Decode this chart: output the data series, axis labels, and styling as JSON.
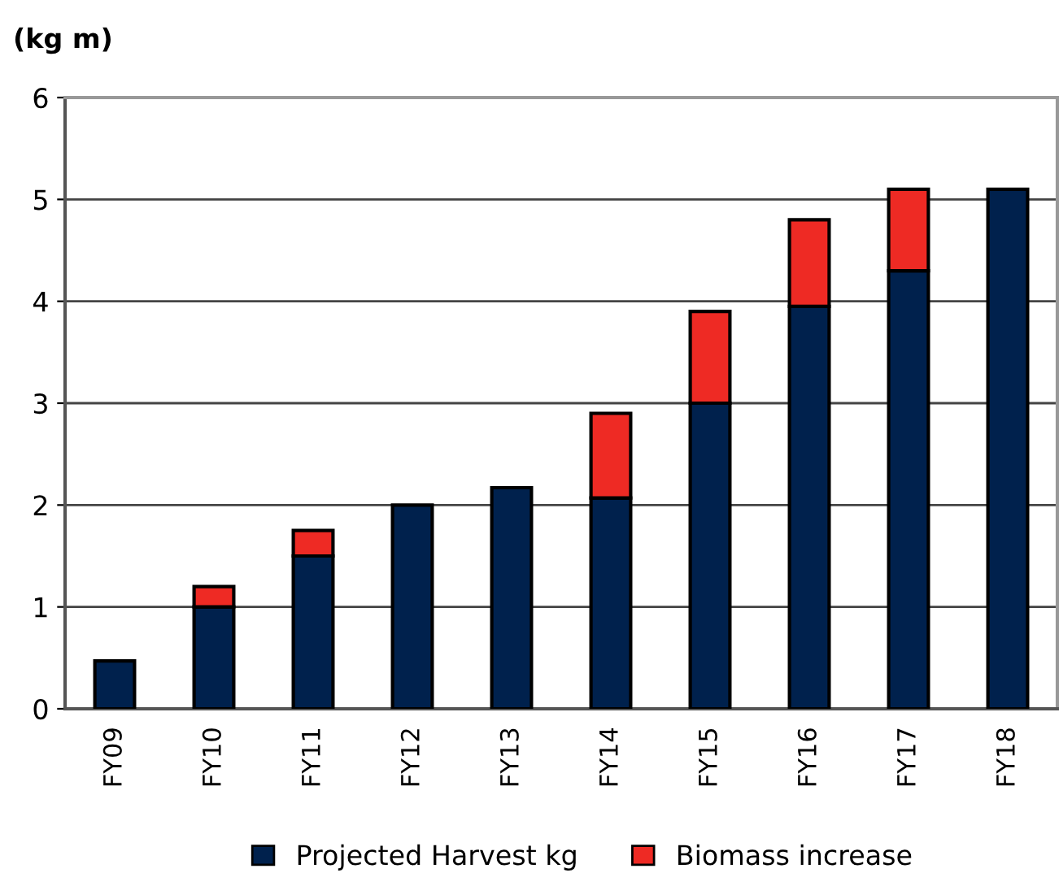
{
  "chart_data": {
    "type": "bar",
    "stacked": true,
    "ylabel": "(kg m)",
    "categories": [
      "FY09",
      "FY10",
      "FY11",
      "FY12",
      "FY13",
      "FY14",
      "FY15",
      "FY16",
      "FY17",
      "FY18"
    ],
    "series": [
      {
        "name": "Projected Harvest kg",
        "color": "#00214d",
        "values": [
          0.47,
          1.0,
          1.5,
          2.0,
          2.17,
          2.07,
          3.0,
          3.95,
          4.3,
          5.1
        ]
      },
      {
        "name": "Biomass increase",
        "color": "#ee2a24",
        "values": [
          null,
          0.2,
          0.25,
          null,
          null,
          0.83,
          0.9,
          0.85,
          0.8,
          null
        ]
      }
    ],
    "ylim": [
      0,
      6
    ],
    "yticks": [
      0,
      1,
      2,
      3,
      4,
      5,
      6
    ],
    "grid": "y",
    "legend": "bottom"
  }
}
